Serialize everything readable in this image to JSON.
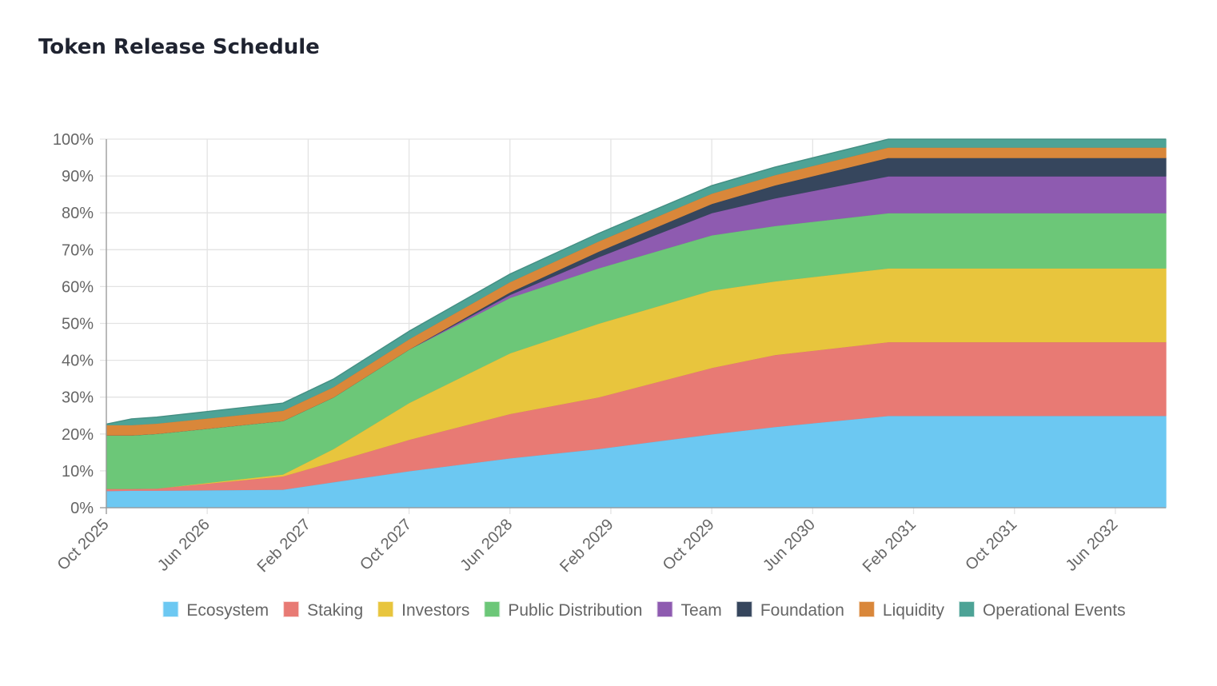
{
  "page": {
    "title": "Token Release Schedule"
  },
  "chart_data": {
    "type": "area",
    "stacked": true,
    "title": "Token Release Schedule",
    "xlabel": "",
    "ylabel": "",
    "ylim": [
      0,
      100
    ],
    "y_ticks": [
      "0%",
      "10%",
      "20%",
      "30%",
      "40%",
      "50%",
      "60%",
      "70%",
      "80%",
      "90%",
      "100%"
    ],
    "x_ticks": [
      "Oct 2025",
      "Jun 2026",
      "Feb 2027",
      "Oct 2027",
      "Jun 2028",
      "Feb 2029",
      "Oct 2029",
      "Jun 2030",
      "Feb 2031",
      "Oct 2031",
      "Jun 2032"
    ],
    "x_range": [
      "Oct 2025",
      "Oct 2032"
    ],
    "grid": true,
    "legend_position": "bottom",
    "x": [
      "Oct 2025",
      "Dec 2025",
      "Feb 2026",
      "Dec 2026",
      "Apr 2027",
      "Oct 2027",
      "Jun 2028",
      "Jan 2029",
      "Oct 2029",
      "Mar 2030",
      "Dec 2030",
      "Oct 2031",
      "Oct 2032"
    ],
    "series": [
      {
        "name": "Ecosystem",
        "color": "#6cc8f2",
        "values": [
          4.6,
          4.7,
          4.7,
          5.0,
          7.0,
          10.0,
          13.5,
          16.0,
          20.0,
          22.0,
          25.0,
          25.0,
          25.0
        ]
      },
      {
        "name": "Staking",
        "color": "#e87a74",
        "values": [
          0.6,
          0.5,
          0.6,
          3.6,
          5.5,
          8.5,
          12.0,
          14.0,
          18.0,
          19.5,
          20.0,
          20.0,
          20.0
        ]
      },
      {
        "name": "Investors",
        "color": "#e8c53d",
        "values": [
          0,
          0,
          0,
          0.5,
          3.5,
          10.0,
          16.5,
          20.0,
          21.0,
          20.0,
          20.0,
          20.0,
          20.0
        ]
      },
      {
        "name": "Public Distribution",
        "color": "#6cc778",
        "values": [
          14.5,
          14.5,
          14.8,
          14.5,
          14.0,
          14.5,
          15.0,
          15.0,
          15.0,
          15.0,
          15.0,
          15.0,
          15.0
        ]
      },
      {
        "name": "Team",
        "color": "#8e5bb0",
        "values": [
          0,
          0,
          0,
          0,
          0,
          0,
          0.8,
          3.0,
          6.0,
          7.5,
          10.0,
          10.0,
          10.0
        ]
      },
      {
        "name": "Foundation",
        "color": "#36465d",
        "values": [
          0,
          0,
          0,
          0,
          0,
          0,
          0.7,
          1.5,
          2.5,
          3.5,
          5.0,
          5.0,
          5.0
        ]
      },
      {
        "name": "Liquidity",
        "color": "#d9873a",
        "values": [
          2.8,
          2.8,
          2.8,
          2.8,
          2.8,
          2.8,
          2.8,
          2.8,
          2.8,
          2.8,
          2.8,
          2.8,
          2.8
        ]
      },
      {
        "name": "Operational Events",
        "color": "#4da396",
        "values": [
          0.2,
          1.6,
          1.7,
          2.0,
          2.1,
          2.1,
          2.1,
          2.1,
          2.1,
          2.1,
          2.2,
          2.2,
          2.2
        ]
      }
    ]
  }
}
